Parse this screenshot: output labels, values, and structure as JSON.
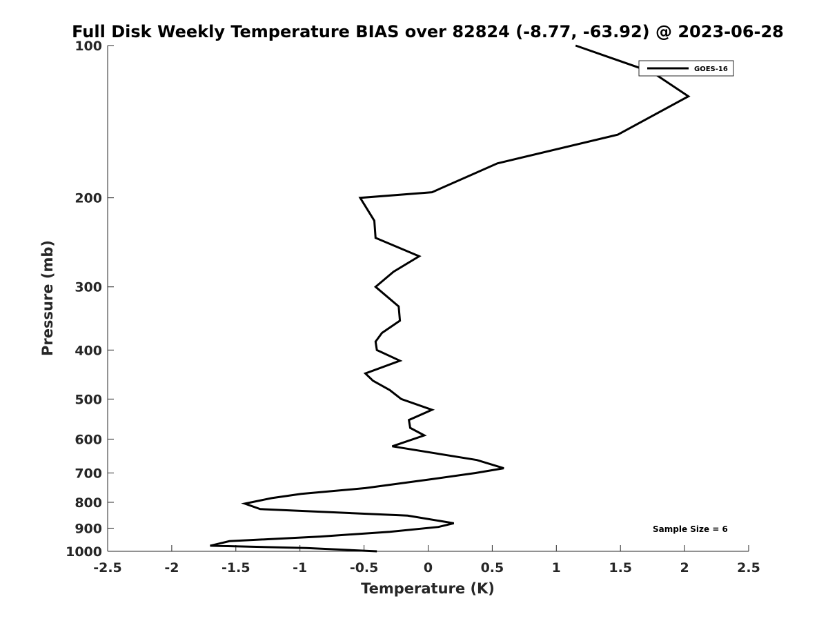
{
  "chart_data": {
    "type": "line",
    "title": "Full Disk Weekly Temperature BIAS over 82824 (-8.77, -63.92) @ 2023-06-28",
    "xlabel": "Temperature (K)",
    "ylabel": "Pressure (mb)",
    "xlim": [
      -2.5,
      2.5
    ],
    "ylim": [
      100,
      1000
    ],
    "y_scale": "log",
    "y_reversed": true,
    "grid": false,
    "legend_position": "top-right",
    "x_ticks": [
      -2.5,
      -2,
      -1.5,
      -1,
      -0.5,
      0,
      0.5,
      1,
      1.5,
      2,
      2.5
    ],
    "x_tick_labels": [
      "-2.5",
      "-2",
      "-1.5",
      "-1",
      "-0.5",
      "0",
      "0.5",
      "1",
      "1.5",
      "2",
      "2.5"
    ],
    "y_ticks": [
      100,
      200,
      300,
      400,
      500,
      600,
      700,
      800,
      900,
      1000
    ],
    "y_tick_labels": [
      "100",
      "200",
      "300",
      "400",
      "500",
      "600",
      "700",
      "800",
      "900",
      "1000"
    ],
    "series": [
      {
        "name": "GOES-16",
        "color": "#000000",
        "points": [
          {
            "x": 1.15,
            "y": 100
          },
          {
            "x": 1.75,
            "y": 113
          },
          {
            "x": 2.03,
            "y": 126
          },
          {
            "x": 1.48,
            "y": 150
          },
          {
            "x": 0.54,
            "y": 171
          },
          {
            "x": 0.03,
            "y": 195
          },
          {
            "x": -0.53,
            "y": 200
          },
          {
            "x": -0.42,
            "y": 222
          },
          {
            "x": -0.41,
            "y": 240
          },
          {
            "x": -0.07,
            "y": 261
          },
          {
            "x": -0.27,
            "y": 280
          },
          {
            "x": -0.41,
            "y": 300
          },
          {
            "x": -0.23,
            "y": 328
          },
          {
            "x": -0.22,
            "y": 350
          },
          {
            "x": -0.36,
            "y": 370
          },
          {
            "x": -0.41,
            "y": 385
          },
          {
            "x": -0.4,
            "y": 400
          },
          {
            "x": -0.22,
            "y": 420
          },
          {
            "x": -0.49,
            "y": 445
          },
          {
            "x": -0.43,
            "y": 460
          },
          {
            "x": -0.3,
            "y": 480
          },
          {
            "x": -0.21,
            "y": 500
          },
          {
            "x": 0.03,
            "y": 525
          },
          {
            "x": -0.15,
            "y": 550
          },
          {
            "x": -0.14,
            "y": 570
          },
          {
            "x": -0.03,
            "y": 590
          },
          {
            "x": -0.28,
            "y": 620
          },
          {
            "x": 0.38,
            "y": 660
          },
          {
            "x": 0.59,
            "y": 685
          },
          {
            "x": 0.37,
            "y": 700
          },
          {
            "x": 0.03,
            "y": 720
          },
          {
            "x": -0.49,
            "y": 750
          },
          {
            "x": -0.99,
            "y": 770
          },
          {
            "x": -1.22,
            "y": 785
          },
          {
            "x": -1.43,
            "y": 805
          },
          {
            "x": -1.31,
            "y": 825
          },
          {
            "x": -0.16,
            "y": 850
          },
          {
            "x": 0.2,
            "y": 880
          },
          {
            "x": 0.08,
            "y": 895
          },
          {
            "x": -0.3,
            "y": 915
          },
          {
            "x": -0.84,
            "y": 935
          },
          {
            "x": -1.55,
            "y": 955
          },
          {
            "x": -1.7,
            "y": 975
          },
          {
            "x": -0.95,
            "y": 985
          },
          {
            "x": -0.4,
            "y": 1000
          }
        ]
      }
    ],
    "annotations": [
      {
        "text": "Sample Size = 6",
        "position": "bottom-right"
      }
    ]
  }
}
